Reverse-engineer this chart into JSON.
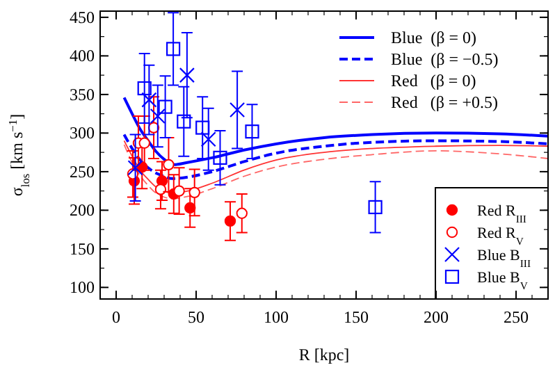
{
  "chart_data": {
    "type": "scatter",
    "xlabel": "R [kpc]",
    "ylabel": "σ$_{los}$ [km s$^{−1}$]",
    "xlim": [
      -10,
      270
    ],
    "ylim": [
      85,
      458
    ],
    "xticks": [
      0,
      50,
      100,
      150,
      200,
      250
    ],
    "yticks": [
      100,
      150,
      200,
      250,
      300,
      350,
      400,
      450
    ],
    "grid": false,
    "legend": "right",
    "series": [
      {
        "type": "line",
        "name": "Blue  (β = 0)",
        "color": "#0000ff",
        "line_style": "solid",
        "x": [
          5,
          10,
          15,
          20,
          25,
          30,
          36,
          45,
          60,
          80,
          100,
          130,
          160,
          200,
          240,
          270
        ],
        "values": [
          346,
          325,
          305,
          290,
          276,
          266,
          259,
          262,
          268,
          278,
          286,
          294,
          298,
          300,
          299,
          296
        ]
      },
      {
        "type": "line",
        "name": "Blue  (β = −0.5)",
        "color": "#0000ff",
        "line_style": "dashed",
        "x": [
          5,
          10,
          15,
          20,
          25,
          30,
          35,
          45,
          60,
          80,
          100,
          130,
          160,
          200,
          240,
          270
        ],
        "values": [
          298,
          280,
          265,
          255,
          248,
          244,
          241,
          243,
          250,
          263,
          274,
          283,
          288,
          290,
          289,
          286
        ]
      },
      {
        "type": "line",
        "name": "Red   (β = 0)",
        "color": "#ff3333",
        "line_style": "solid",
        "x": [
          5,
          10,
          15,
          20,
          25,
          30,
          35,
          45,
          60,
          80,
          100,
          130,
          160,
          200,
          240,
          270
        ],
        "values": [
          290,
          270,
          252,
          240,
          230,
          225,
          222,
          225,
          235,
          252,
          265,
          275,
          280,
          283,
          284,
          283
        ]
      },
      {
        "type": "line",
        "name": "Red   (β = +0.5)",
        "color": "#ff6666",
        "line_style": "dashed",
        "x": [
          5,
          10,
          15,
          20,
          25,
          30,
          35,
          45,
          60,
          80,
          100,
          130,
          160,
          200,
          240,
          270
        ],
        "values": [
          285,
          262,
          245,
          232,
          222,
          217,
          215,
          218,
          228,
          244,
          256,
          266,
          272,
          277,
          273,
          267
        ]
      },
      {
        "name": "Red R$_{III}$",
        "color": "#ff0000",
        "marker": "circle",
        "x": [
          11.3,
          16.2,
          28.7,
          36,
          46.2,
          71.3
        ],
        "values": [
          238,
          256,
          238,
          221,
          203,
          186
        ],
        "errors": [
          30,
          28,
          25,
          25,
          25,
          25
        ]
      },
      {
        "name": "Red R$_{V}$",
        "color": "#ff0000",
        "marker": "circle-open",
        "x": [
          10.4,
          13.9,
          17.7,
          23.5,
          27.8,
          32.8,
          39.4,
          49,
          78.6
        ],
        "values": [
          247,
          287,
          287,
          307,
          227,
          259,
          225,
          223,
          196
        ],
        "errors": [
          30,
          35,
          35,
          40,
          25,
          35,
          30,
          30,
          25
        ]
      },
      {
        "name": "Blue B$_{III}$",
        "color": "#0000ff",
        "marker": "cross",
        "x": [
          12,
          20.6,
          26,
          44.3,
          57.7,
          75.7
        ],
        "values": [
          255,
          343,
          322,
          375,
          292,
          330
        ],
        "errors": [
          43,
          45,
          40,
          55,
          40,
          50
        ]
      },
      {
        "name": "Blue B$_{V}$",
        "color": "#0000ff",
        "marker": "square",
        "x": [
          17.7,
          30.7,
          35.7,
          42.3,
          54,
          65,
          85,
          162
        ],
        "values": [
          358,
          334,
          409,
          315,
          307,
          268,
          302,
          204
        ],
        "errors": [
          45,
          40,
          47,
          45,
          40,
          35,
          35,
          33
        ]
      }
    ]
  }
}
